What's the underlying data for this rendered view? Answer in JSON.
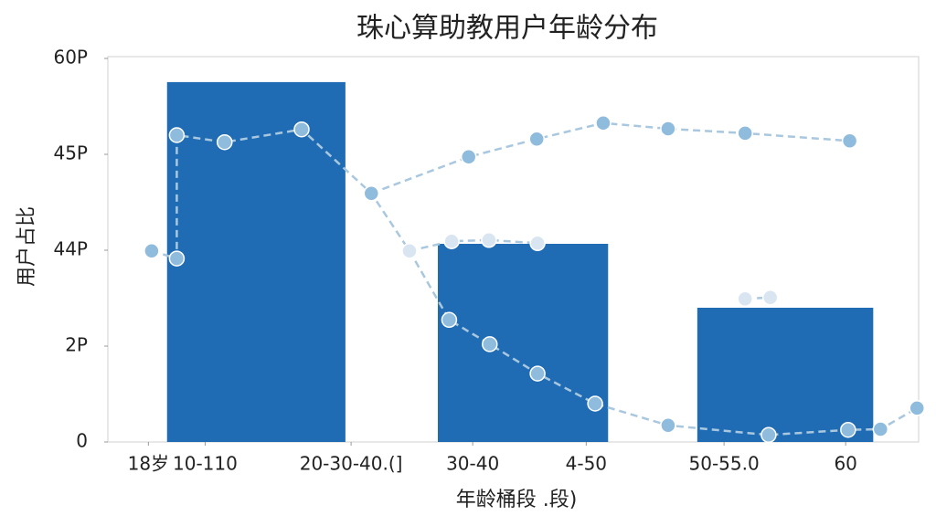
{
  "chart_data": {
    "type": "bar-line",
    "title": "珠心算助教用户年龄分布",
    "y_label": "用户占比",
    "x_label": "年龄桶段 .段)",
    "xlim": [
      0,
      100
    ],
    "xticks": [
      {
        "value": 5,
        "label": "18岁"
      },
      {
        "value": 12,
        "label": "10-110"
      },
      {
        "value": 30,
        "label": "20-30-40.(]"
      },
      {
        "value": 45,
        "label": "30-40"
      },
      {
        "value": 59,
        "label": "4-50"
      },
      {
        "value": 76,
        "label": "50-55.0"
      },
      {
        "value": 91,
        "label": "60"
      }
    ],
    "ylim": [
      0,
      60
    ],
    "yticks": [
      {
        "value": 0,
        "label": "0"
      },
      {
        "value": 15,
        "label": "2P"
      },
      {
        "value": 30,
        "label": "44P"
      },
      {
        "value": 45,
        "label": "45P"
      },
      {
        "value": 60,
        "label": "60P"
      }
    ],
    "bars": {
      "color": "#1f6cb4",
      "x0": [
        7.3,
        40.7,
        72.7
      ],
      "x1": [
        29.3,
        61.7,
        94.4
      ],
      "values": [
        56.3,
        31,
        21
      ]
    },
    "series": [
      {
        "color": "#8fbbdd",
        "x": [
          5.4,
          8.5,
          8.5,
          14.4,
          23.9,
          32.5,
          37.2,
          42.1,
          47.1,
          53,
          60.1,
          69.1,
          81.5,
          91.3,
          95.3,
          99.8
        ],
        "values": [
          29.9,
          28.7,
          48,
          46.9,
          48.9,
          38.9,
          29.9,
          19.1,
          15.3,
          10.7,
          6,
          2.6,
          1.1,
          1.9,
          2,
          5.3
        ]
      },
      {
        "color": "#8fbbdd",
        "x": [
          32.5,
          44.5,
          52.9,
          61.1,
          69.1,
          78.6,
          91.5
        ],
        "values": [
          38.9,
          44.6,
          47.4,
          49.9,
          49,
          48.3,
          47.1
        ]
      },
      {
        "color": "#d9e6f1",
        "x": [
          37.2,
          42.4,
          47,
          53
        ],
        "values": [
          29.9,
          31.4,
          31.6,
          31.1
        ]
      },
      {
        "color": "#d9e6f1",
        "x": [
          78.6,
          81.7
        ],
        "values": [
          22.4,
          22.6
        ]
      }
    ]
  }
}
